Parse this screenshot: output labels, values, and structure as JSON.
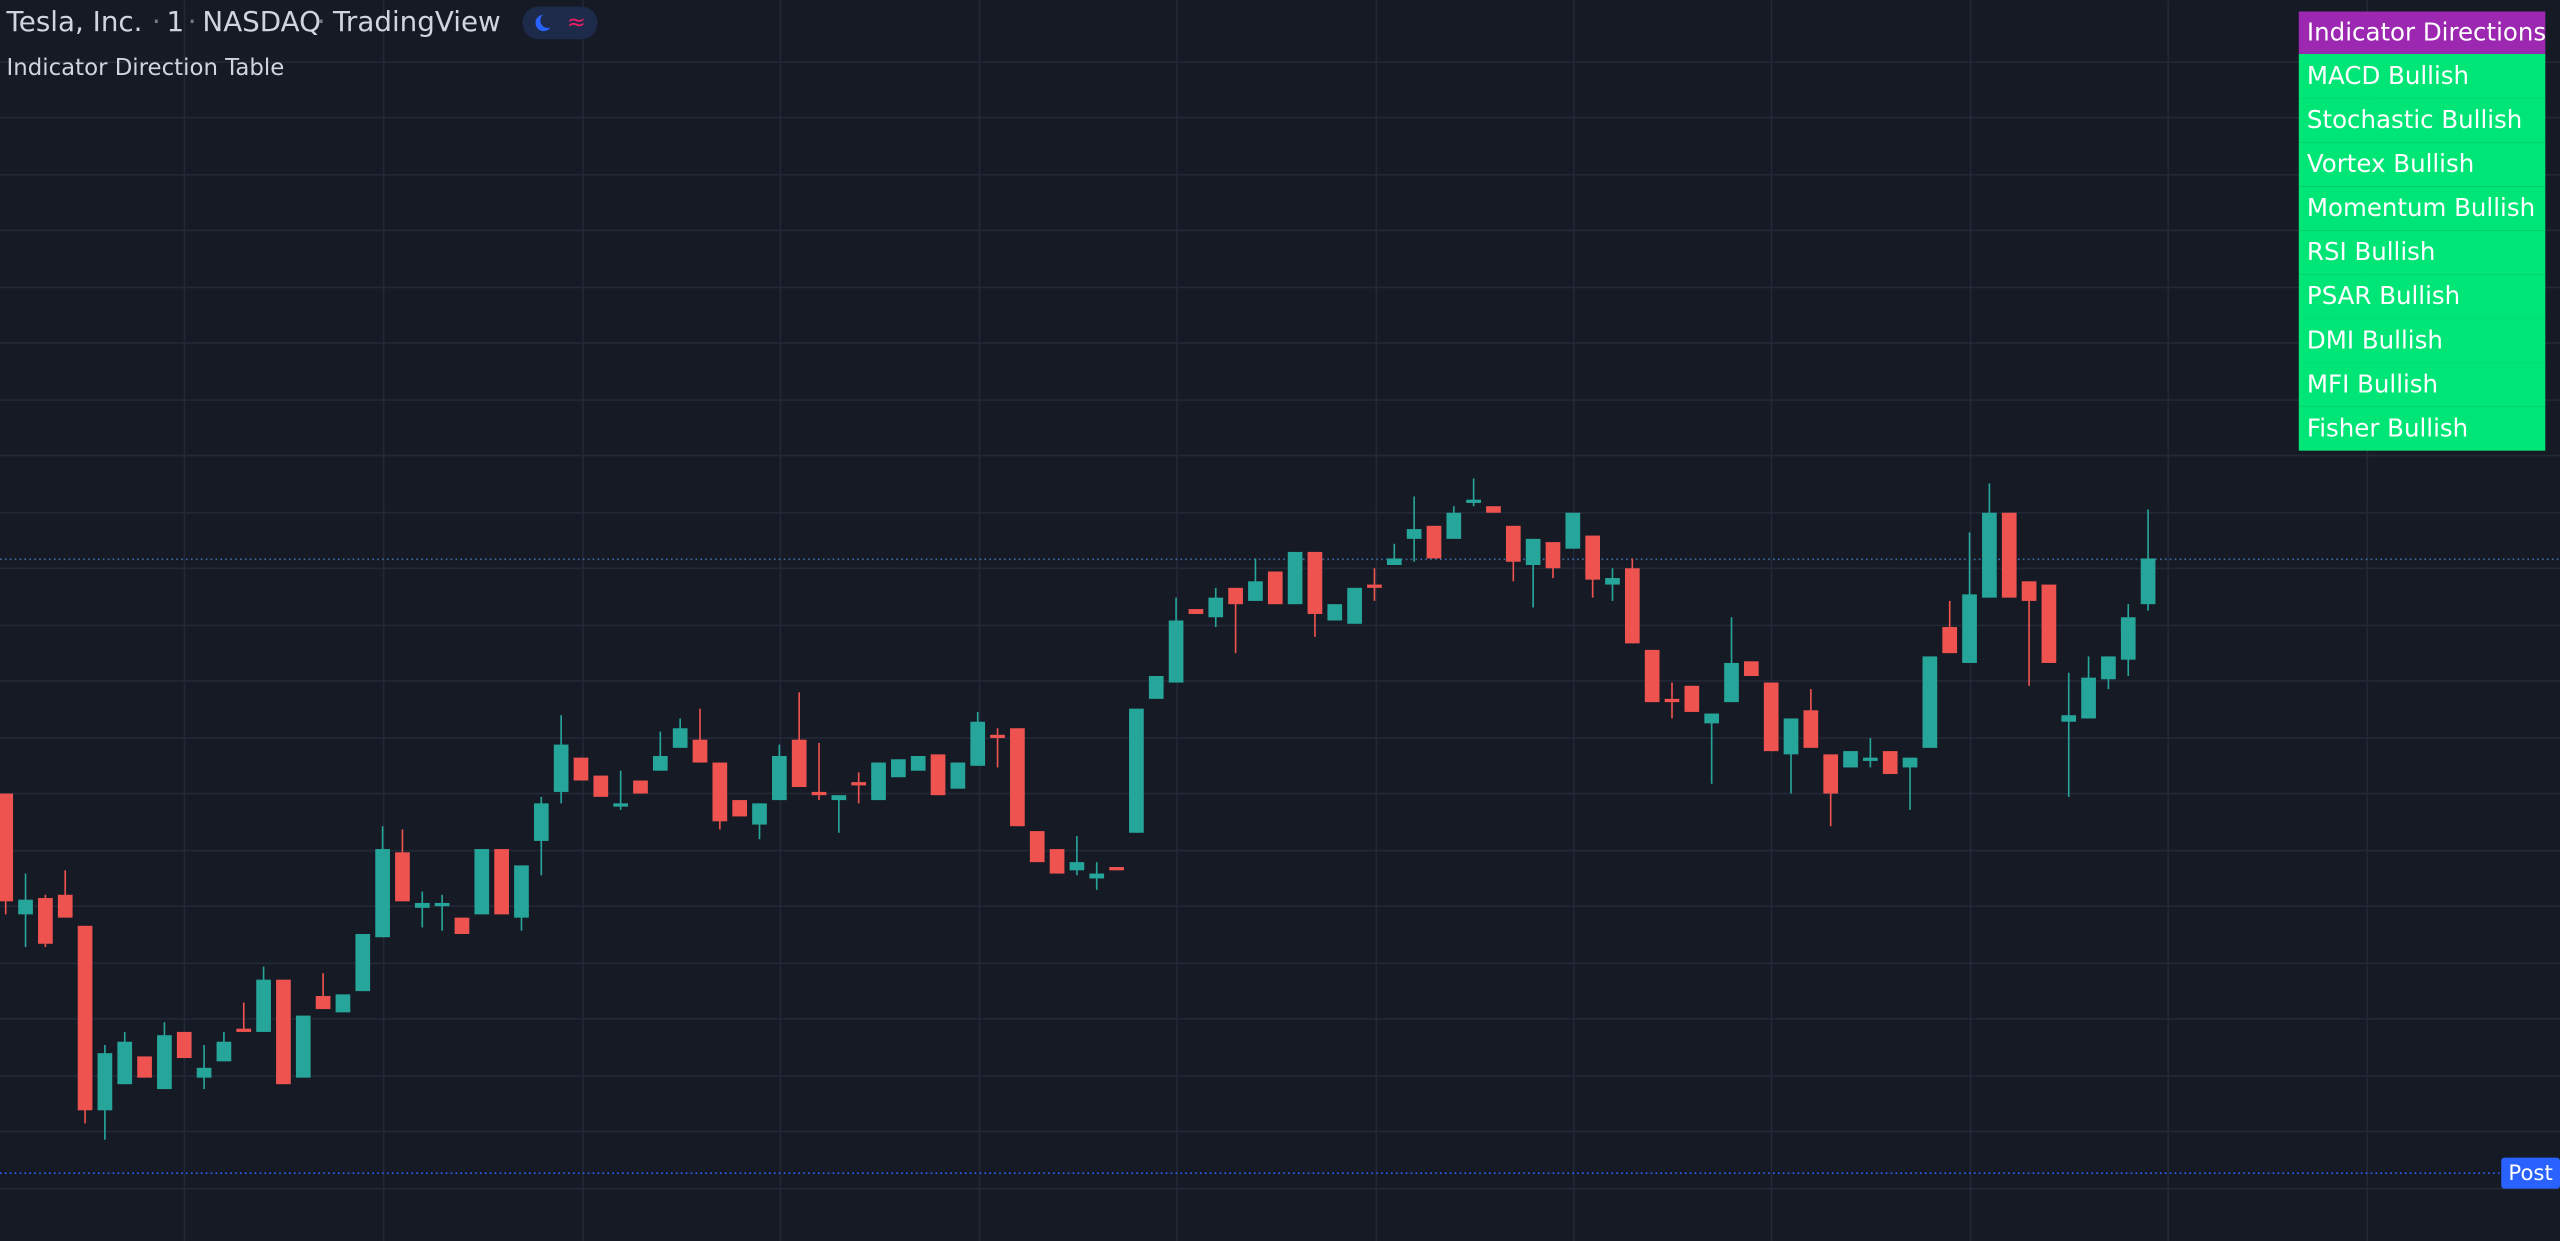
{
  "header": {
    "symbol": "Tesla, Inc.",
    "interval": "1",
    "exchange": "NASDAQ",
    "source": "TradingView",
    "indicator": "Indicator Direction Table"
  },
  "table": {
    "title": "Indicator Directions",
    "rows": [
      "MACD Bullish",
      "Stochastic Bullish",
      "Vortex Bullish",
      "Momentum Bullish",
      "RSI Bullish",
      "PSAR Bullish",
      "DMI Bullish",
      "MFI Bullish",
      "Fisher Bullish"
    ]
  },
  "price_label": "Post",
  "chart_data": {
    "type": "candlestick",
    "ylim": [
      0,
      76
    ],
    "up_color": "#26a69a",
    "down_color": "#ef5350",
    "open": [
      27.4,
      20.0,
      21.0,
      21.2,
      19.3,
      8.0,
      9.6,
      11.3,
      9.3,
      12.8,
      10.0,
      11.0,
      13.0,
      12.8,
      16.0,
      10.0,
      15.0,
      14.0,
      15.3,
      18.6,
      23.8,
      20.4,
      20.5,
      19.8,
      20.0,
      24.0,
      19.8,
      24.5,
      27.5,
      29.6,
      28.5,
      26.6,
      28.2,
      28.8,
      30.2,
      30.7,
      29.3,
      27.0,
      25.5,
      27.0,
      30.7,
      27.5,
      27.0,
      28.1,
      27.0,
      28.4,
      28.8,
      29.8,
      27.7,
      29.1,
      31.0,
      31.4,
      25.1,
      24.0,
      22.7,
      22.2,
      22.9,
      25.0,
      33.2,
      34.2,
      38.7,
      38.2,
      40.0,
      39.2,
      41.0,
      39.0,
      42.2,
      38.0,
      37.8,
      40.2,
      41.4,
      43.0,
      43.8,
      43.0,
      45.2,
      45.0,
      43.8,
      41.4,
      42.8,
      42.4,
      43.2,
      40.2,
      41.2,
      36.2,
      33.2,
      34.0,
      31.7,
      33.0,
      35.5,
      34.2,
      29.8,
      32.5,
      29.8,
      29.0,
      29.4,
      30.0,
      29.0,
      30.2,
      37.6,
      35.4,
      39.4,
      44.6,
      40.4,
      40.2,
      31.8,
      32.0,
      34.4,
      35.6,
      39.0
    ],
    "high": [
      27.4,
      22.5,
      21.2,
      22.7,
      19.3,
      12.0,
      12.8,
      11.3,
      13.4,
      12.8,
      12.0,
      12.8,
      14.6,
      16.8,
      16.0,
      13.8,
      16.4,
      15.1,
      18.8,
      25.4,
      25.2,
      21.4,
      21.2,
      19.8,
      24.0,
      24.0,
      23.0,
      27.2,
      32.2,
      29.6,
      28.5,
      28.8,
      28.2,
      31.2,
      32.0,
      32.6,
      29.3,
      27.0,
      26.8,
      30.4,
      33.6,
      30.5,
      27.3,
      28.7,
      29.3,
      29.5,
      29.7,
      29.8,
      29.3,
      32.4,
      31.4,
      31.4,
      25.1,
      24.0,
      24.8,
      23.2,
      22.9,
      32.6,
      34.6,
      39.4,
      38.7,
      40.0,
      40.0,
      41.8,
      41.0,
      42.2,
      42.2,
      39.0,
      40.0,
      41.2,
      42.7,
      45.6,
      43.8,
      45.0,
      46.7,
      45.0,
      43.8,
      43.0,
      42.8,
      44.6,
      43.2,
      41.2,
      41.8,
      36.2,
      34.2,
      34.0,
      32.3,
      38.2,
      35.5,
      34.2,
      32.0,
      33.8,
      29.8,
      30.0,
      30.8,
      30.0,
      29.6,
      35.8,
      39.2,
      43.4,
      46.4,
      44.6,
      40.4,
      40.2,
      34.8,
      35.8,
      35.8,
      39.0,
      44.8
    ],
    "low": [
      20.0,
      18.0,
      18.0,
      19.8,
      7.2,
      6.2,
      9.6,
      10.0,
      9.3,
      11.2,
      9.3,
      11.0,
      12.8,
      12.8,
      9.6,
      10.0,
      14.2,
      14.0,
      15.3,
      18.6,
      20.8,
      19.2,
      19.0,
      18.8,
      20.0,
      20.0,
      19.0,
      22.4,
      26.8,
      28.2,
      27.2,
      26.4,
      27.4,
      28.8,
      30.2,
      29.3,
      25.2,
      26.0,
      24.6,
      27.0,
      27.8,
      27.0,
      25.0,
      26.8,
      27.0,
      28.4,
      28.8,
      27.3,
      27.7,
      29.1,
      29.0,
      25.4,
      23.2,
      22.5,
      22.4,
      21.5,
      22.7,
      25.0,
      33.2,
      34.2,
      38.4,
      37.6,
      36.0,
      39.2,
      39.0,
      39.0,
      37.0,
      38.0,
      37.8,
      39.2,
      41.4,
      41.6,
      41.8,
      43.0,
      45.0,
      44.6,
      40.4,
      38.8,
      40.6,
      42.4,
      39.4,
      39.2,
      36.6,
      33.0,
      32.0,
      32.4,
      28.0,
      33.0,
      34.6,
      30.0,
      27.4,
      30.2,
      25.4,
      29.0,
      29.0,
      28.6,
      26.4,
      30.2,
      36.0,
      35.4,
      39.4,
      39.4,
      34.0,
      35.4,
      27.2,
      32.0,
      33.8,
      34.6,
      38.6
    ],
    "close": [
      20.8,
      20.9,
      18.2,
      19.8,
      8.0,
      11.5,
      12.2,
      10.0,
      12.6,
      11.2,
      10.6,
      12.2,
      12.8,
      16.0,
      9.6,
      13.8,
      14.2,
      15.1,
      18.8,
      24.0,
      20.8,
      20.7,
      20.7,
      18.8,
      24.0,
      20.0,
      23.0,
      26.8,
      30.4,
      28.2,
      27.2,
      26.8,
      27.4,
      29.7,
      31.4,
      29.3,
      25.7,
      26.0,
      26.8,
      29.7,
      27.8,
      27.3,
      27.3,
      27.9,
      29.3,
      29.5,
      29.7,
      27.3,
      29.3,
      31.8,
      30.8,
      25.4,
      23.2,
      22.5,
      23.2,
      22.5,
      22.7,
      32.6,
      34.6,
      38.0,
      38.4,
      39.4,
      39.0,
      40.4,
      39.0,
      42.2,
      38.4,
      39.0,
      40.0,
      40.0,
      41.8,
      43.6,
      41.8,
      44.6,
      45.4,
      44.6,
      41.6,
      43.0,
      41.2,
      44.6,
      40.5,
      40.6,
      36.6,
      33.0,
      33.0,
      32.4,
      32.3,
      35.4,
      34.6,
      30.0,
      32.0,
      30.2,
      27.4,
      30.0,
      29.6,
      28.6,
      29.6,
      35.8,
      36.0,
      39.6,
      44.6,
      39.4,
      39.2,
      35.4,
      32.2,
      34.5,
      35.8,
      38.2,
      41.8
    ]
  }
}
